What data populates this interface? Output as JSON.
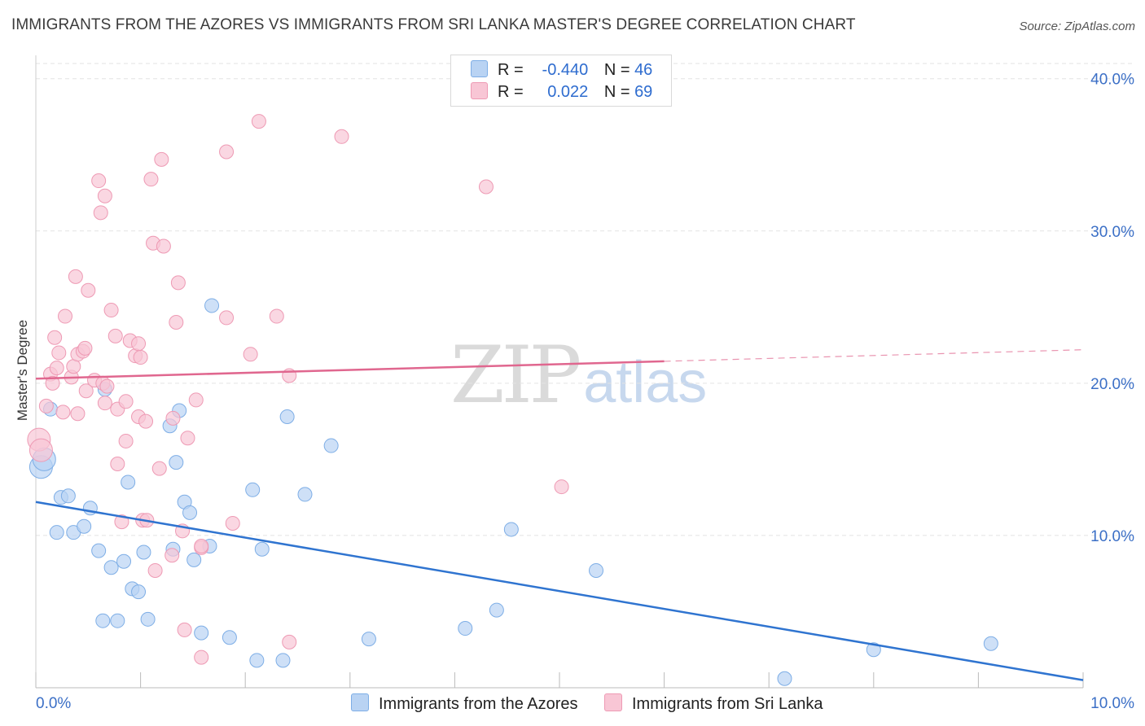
{
  "title": "IMMIGRANTS FROM THE AZORES VS IMMIGRANTS FROM SRI LANKA MASTER'S DEGREE CORRELATION CHART",
  "source": "Source: ZipAtlas.com",
  "watermark": {
    "zip": "ZIP",
    "atlas": "atlas"
  },
  "legend": {
    "rows": [
      {
        "r_label": "R =",
        "r_value": "-0.440",
        "n_label": "N =",
        "n_value": "46"
      },
      {
        "r_label": "R =",
        "r_value": "0.022",
        "n_label": "N =",
        "n_value": "69"
      }
    ]
  },
  "colors": {
    "azores_fill": "#b9d3f3",
    "azores_stroke": "#7eaee6",
    "azores_line": "#2f74d0",
    "srilanka_fill": "#f8c6d5",
    "srilanka_stroke": "#ee9ab4",
    "srilanka_line": "#e0678f",
    "grid": "#e3e3e3",
    "tick_label": "#3b6fc6"
  },
  "chart_data": {
    "type": "scatter",
    "title": "IMMIGRANTS FROM THE AZORES VS IMMIGRANTS FROM SRI LANKA MASTER'S DEGREE CORRELATION CHART",
    "xlabel": "",
    "ylabel": "Master's Degree",
    "xlim": [
      0,
      10
    ],
    "ylim": [
      0,
      41
    ],
    "x_tick_labels": [
      "0.0%",
      "10.0%"
    ],
    "y_ticks": [
      10,
      20,
      30,
      40
    ],
    "y_tick_labels": [
      "10.0%",
      "20.0%",
      "30.0%",
      "40.0%"
    ],
    "grid": true,
    "legend_position": "bottom",
    "series": [
      {
        "name": "Immigrants from the Azores",
        "r": -0.44,
        "n": 46,
        "trend": {
          "x0": 0,
          "y0": 12.2,
          "x1": 10,
          "y1": 0.5,
          "dashed_from": null
        },
        "points": [
          [
            0.05,
            14.5
          ],
          [
            0.08,
            15.0
          ],
          [
            0.14,
            18.3
          ],
          [
            0.2,
            10.2
          ],
          [
            0.24,
            12.5
          ],
          [
            0.31,
            12.6
          ],
          [
            0.36,
            10.2
          ],
          [
            0.46,
            10.6
          ],
          [
            0.52,
            11.8
          ],
          [
            0.6,
            9.0
          ],
          [
            0.64,
            4.4
          ],
          [
            0.72,
            7.9
          ],
          [
            0.78,
            4.4
          ],
          [
            0.84,
            8.3
          ],
          [
            0.88,
            13.5
          ],
          [
            0.92,
            6.5
          ],
          [
            0.98,
            6.3
          ],
          [
            1.03,
            8.9
          ],
          [
            1.07,
            4.5
          ],
          [
            1.28,
            17.2
          ],
          [
            1.31,
            9.1
          ],
          [
            1.34,
            14.8
          ],
          [
            1.37,
            18.2
          ],
          [
            1.42,
            12.2
          ],
          [
            1.47,
            11.5
          ],
          [
            1.51,
            8.4
          ],
          [
            1.58,
            3.6
          ],
          [
            1.66,
            9.3
          ],
          [
            1.68,
            25.1
          ],
          [
            1.85,
            3.3
          ],
          [
            2.07,
            13.0
          ],
          [
            2.11,
            1.8
          ],
          [
            2.16,
            9.1
          ],
          [
            2.36,
            1.8
          ],
          [
            2.4,
            17.8
          ],
          [
            2.57,
            12.7
          ],
          [
            2.82,
            15.9
          ],
          [
            3.18,
            3.2
          ],
          [
            4.1,
            3.9
          ],
          [
            4.4,
            5.1
          ],
          [
            4.54,
            10.4
          ],
          [
            5.35,
            7.7
          ],
          [
            7.15,
            0.6
          ],
          [
            8.0,
            2.5
          ],
          [
            9.12,
            2.9
          ],
          [
            0.66,
            19.6
          ]
        ]
      },
      {
        "name": "Immigrants from Sri Lanka",
        "r": 0.022,
        "n": 69,
        "trend": {
          "x0": 0,
          "y0": 20.3,
          "x1": 10,
          "y1": 22.2,
          "dashed_from": 6.0
        },
        "points": [
          [
            0.03,
            16.3
          ],
          [
            0.05,
            15.6
          ],
          [
            0.1,
            18.5
          ],
          [
            0.14,
            20.6
          ],
          [
            0.16,
            20.0
          ],
          [
            0.18,
            23.0
          ],
          [
            0.2,
            21.0
          ],
          [
            0.22,
            22.0
          ],
          [
            0.26,
            18.1
          ],
          [
            0.28,
            24.4
          ],
          [
            0.34,
            20.4
          ],
          [
            0.38,
            27.0
          ],
          [
            0.36,
            21.1
          ],
          [
            0.4,
            21.9
          ],
          [
            0.4,
            18.0
          ],
          [
            0.45,
            22.1
          ],
          [
            0.47,
            22.3
          ],
          [
            0.48,
            19.5
          ],
          [
            0.5,
            26.1
          ],
          [
            0.56,
            20.2
          ],
          [
            0.6,
            33.3
          ],
          [
            0.62,
            31.2
          ],
          [
            0.64,
            20.0
          ],
          [
            0.66,
            18.7
          ],
          [
            0.68,
            19.8
          ],
          [
            0.66,
            32.3
          ],
          [
            0.72,
            24.8
          ],
          [
            0.76,
            23.1
          ],
          [
            0.78,
            18.3
          ],
          [
            0.78,
            14.7
          ],
          [
            0.82,
            10.9
          ],
          [
            0.86,
            16.2
          ],
          [
            0.86,
            18.8
          ],
          [
            0.9,
            22.8
          ],
          [
            0.95,
            21.8
          ],
          [
            0.98,
            22.6
          ],
          [
            0.98,
            17.8
          ],
          [
            1.0,
            21.7
          ],
          [
            1.02,
            11.0
          ],
          [
            1.05,
            17.5
          ],
          [
            1.06,
            11.0
          ],
          [
            1.1,
            33.4
          ],
          [
            1.12,
            29.2
          ],
          [
            1.14,
            7.7
          ],
          [
            1.18,
            14.4
          ],
          [
            1.2,
            34.7
          ],
          [
            1.22,
            29.0
          ],
          [
            1.3,
            8.7
          ],
          [
            1.31,
            17.7
          ],
          [
            1.34,
            24.0
          ],
          [
            1.36,
            26.6
          ],
          [
            1.4,
            10.3
          ],
          [
            1.42,
            3.8
          ],
          [
            1.45,
            16.4
          ],
          [
            1.53,
            18.9
          ],
          [
            1.58,
            9.2
          ],
          [
            1.58,
            2.0
          ],
          [
            1.82,
            35.2
          ],
          [
            1.82,
            24.3
          ],
          [
            1.88,
            10.8
          ],
          [
            2.05,
            21.9
          ],
          [
            2.13,
            37.2
          ],
          [
            2.3,
            24.4
          ],
          [
            2.42,
            20.5
          ],
          [
            2.42,
            3.0
          ],
          [
            2.92,
            36.2
          ],
          [
            4.3,
            32.9
          ],
          [
            5.02,
            13.2
          ],
          [
            1.58,
            9.3
          ]
        ]
      }
    ]
  },
  "bottom_legend": [
    {
      "label": "Immigrants from the Azores"
    },
    {
      "label": "Immigrants from Sri Lanka"
    }
  ]
}
